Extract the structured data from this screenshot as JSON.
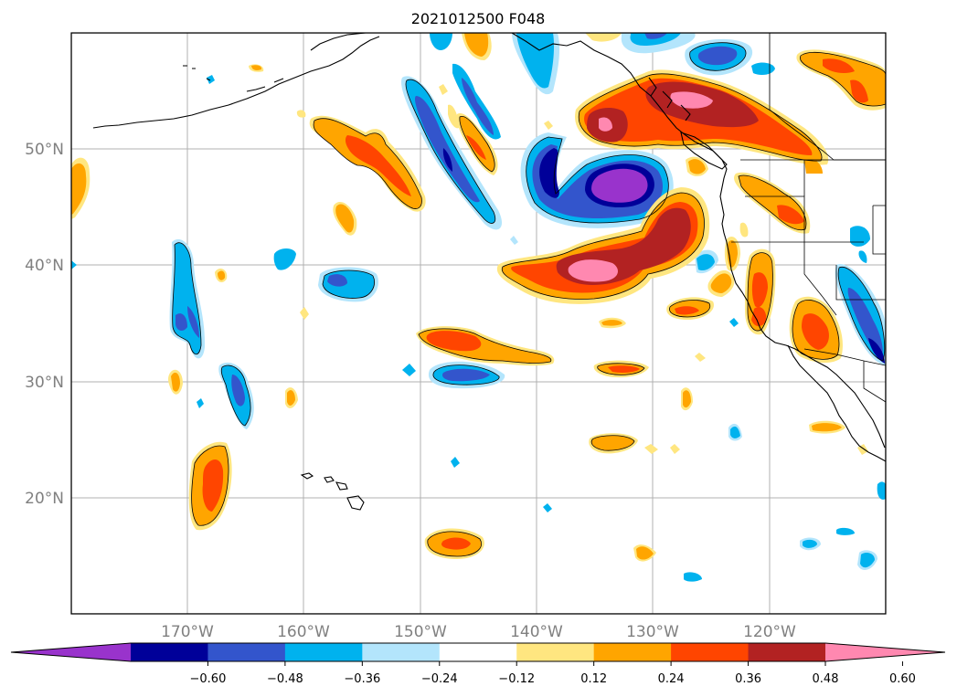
{
  "title": "2021012500 F048",
  "latitude_labels": [
    "50°N",
    "40°N",
    "30°N",
    "20°N"
  ],
  "longitude_labels": [
    "170°W",
    "160°W",
    "150°W",
    "140°W",
    "130°W",
    "120°W"
  ],
  "colorbar": {
    "colors": [
      "#9933cc",
      "#000099",
      "#3355cc",
      "#00b2ee",
      "#b3e5fc",
      "#ffffff",
      "#ffe680",
      "#ffa500",
      "#ff4500",
      "#b22222",
      "#ff88b0"
    ],
    "tick_labels": [
      "−0.60",
      "−0.48",
      "−0.36",
      "−0.24",
      "−0.12",
      "0.12",
      "0.24",
      "0.36",
      "0.48",
      "0.60"
    ],
    "extend": "both"
  }
}
